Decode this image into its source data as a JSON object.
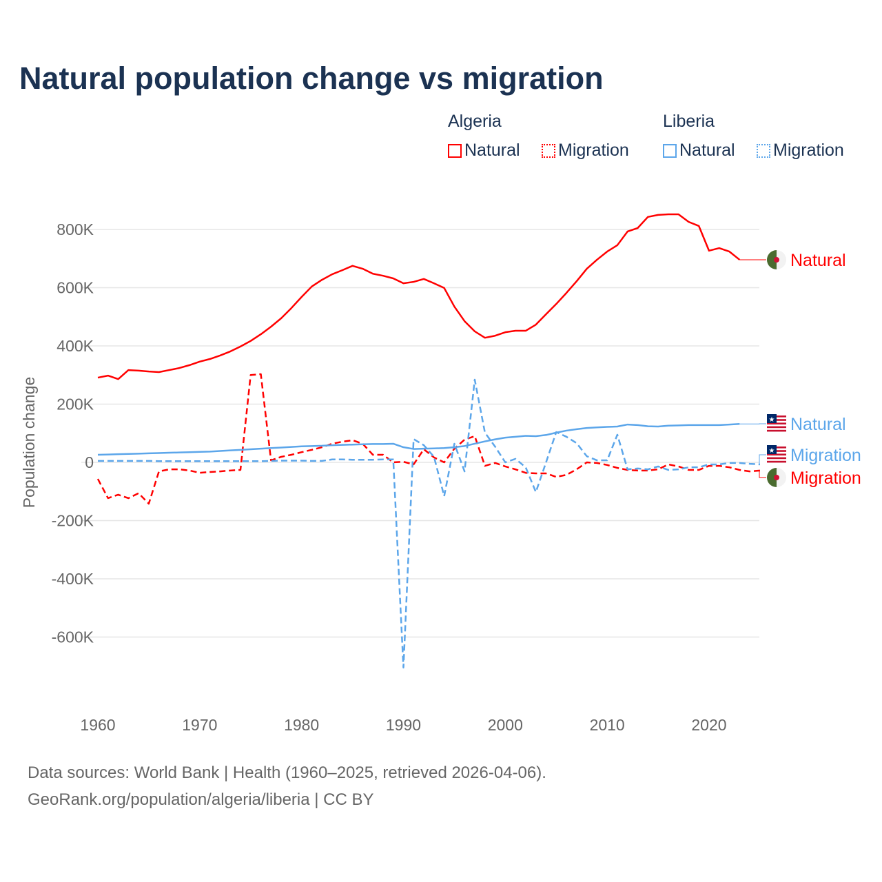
{
  "title": "Natural population change vs migration",
  "legend": {
    "groups": [
      {
        "name": "Algeria",
        "items": [
          "Natural",
          "Migration"
        ]
      },
      {
        "name": "Liberia",
        "items": [
          "Natural",
          "Migration"
        ]
      }
    ]
  },
  "source": {
    "line1": "Data sources: World Bank | Health (1960–2025, retrieved 2026-04-06).",
    "line2": "GeoRank.org/population/algeria/liberia | CC BY"
  },
  "colors": {
    "algeria": "#ff0000",
    "liberia": "#5ca6ea"
  },
  "chart_data": {
    "type": "line",
    "title": "Natural population change vs migration",
    "ylabel": "Population change",
    "xlabel": "",
    "ylim": [
      -800000,
      900000
    ],
    "xlim": [
      1960,
      2025
    ],
    "yticks": [
      {
        "v": 800000,
        "label": "800K"
      },
      {
        "v": 600000,
        "label": "600K"
      },
      {
        "v": 400000,
        "label": "400K"
      },
      {
        "v": 200000,
        "label": "200K"
      },
      {
        "v": 0,
        "label": "0"
      },
      {
        "v": -200000,
        "label": "-200K"
      },
      {
        "v": -400000,
        "label": "-400K"
      },
      {
        "v": -600000,
        "label": "-600K"
      }
    ],
    "xticks": [
      {
        "v": 1960,
        "label": "1960"
      },
      {
        "v": 1970,
        "label": "1970"
      },
      {
        "v": 1980,
        "label": "1980"
      },
      {
        "v": 1990,
        "label": "1990"
      },
      {
        "v": 2000,
        "label": "2000"
      },
      {
        "v": 2010,
        "label": "2010"
      },
      {
        "v": 2020,
        "label": "2020"
      }
    ],
    "series": [
      {
        "name": "Algeria Natural",
        "country": "algeria",
        "dashed": false,
        "end_label": "Natural",
        "start": 1960,
        "values": [
          291,
          298,
          286,
          317,
          315,
          312,
          310,
          317,
          324,
          334,
          346,
          355,
          367,
          381,
          398,
          417,
          440,
          466,
          495,
          530,
          568,
          604,
          627,
          646,
          660,
          675,
          665,
          648,
          641,
          632,
          615,
          620,
          630,
          615,
          599,
          535,
          485,
          450,
          428,
          435,
          447,
          452,
          452,
          473,
          509,
          544,
          582,
          622,
          665,
          696,
          724,
          746,
          793,
          805,
          843,
          850,
          852,
          852,
          826,
          812,
          727,
          736,
          724,
          696
        ]
      },
      {
        "name": "Algeria Migration",
        "country": "algeria",
        "dashed": true,
        "end_label": "Migration",
        "start": 1960,
        "values": [
          -57,
          -123,
          -111,
          -123,
          -106,
          -142,
          -31,
          -24,
          -24,
          -28,
          -36,
          -33,
          -31,
          -28,
          -26,
          300,
          303,
          7,
          19,
          26,
          35,
          43,
          52,
          64,
          71,
          76,
          64,
          26,
          26,
          0,
          2,
          -7,
          45,
          17,
          0,
          47,
          78,
          90,
          -12,
          -2,
          -14,
          -24,
          -36,
          -38,
          -38,
          -50,
          -43,
          -24,
          0,
          -2,
          -9,
          -19,
          -26,
          -28,
          -28,
          -24,
          -7,
          -14,
          -26,
          -26,
          -12,
          -12,
          -17,
          -26,
          -31,
          -28
        ]
      },
      {
        "name": "Liberia Natural",
        "country": "liberia",
        "dashed": false,
        "end_label": "Natural",
        "start": 1960,
        "values": [
          26,
          27,
          28,
          29,
          30,
          31,
          32,
          33,
          34,
          35,
          36,
          37,
          39,
          41,
          43,
          45,
          47,
          49,
          51,
          53,
          55,
          56,
          57,
          59,
          60,
          61,
          62,
          63,
          63,
          64,
          52,
          46,
          47,
          48,
          49,
          52,
          56,
          64,
          72,
          79,
          85,
          88,
          91,
          90,
          94,
          102,
          109,
          114,
          118,
          120,
          122,
          123,
          130,
          128,
          124,
          123,
          126,
          127,
          128,
          128,
          128,
          128,
          130,
          132
        ]
      },
      {
        "name": "Liberia Migration",
        "country": "liberia",
        "dashed": true,
        "end_label": "Migration",
        "start": 1960,
        "values": [
          5,
          5,
          5,
          5,
          5,
          5,
          4,
          4,
          4,
          4,
          4,
          4,
          4,
          4,
          4,
          4,
          4,
          5,
          6,
          6,
          6,
          5,
          5,
          10,
          10,
          9,
          9,
          9,
          10,
          10,
          -705,
          80,
          59,
          19,
          -116,
          64,
          -31,
          284,
          102,
          54,
          0,
          12,
          -17,
          -102,
          0,
          104,
          88,
          66,
          21,
          7,
          7,
          95,
          -24,
          -21,
          -24,
          -14,
          -26,
          -24,
          -17,
          -17,
          -7,
          -7,
          -2,
          -2,
          -5,
          -7
        ]
      }
    ]
  }
}
